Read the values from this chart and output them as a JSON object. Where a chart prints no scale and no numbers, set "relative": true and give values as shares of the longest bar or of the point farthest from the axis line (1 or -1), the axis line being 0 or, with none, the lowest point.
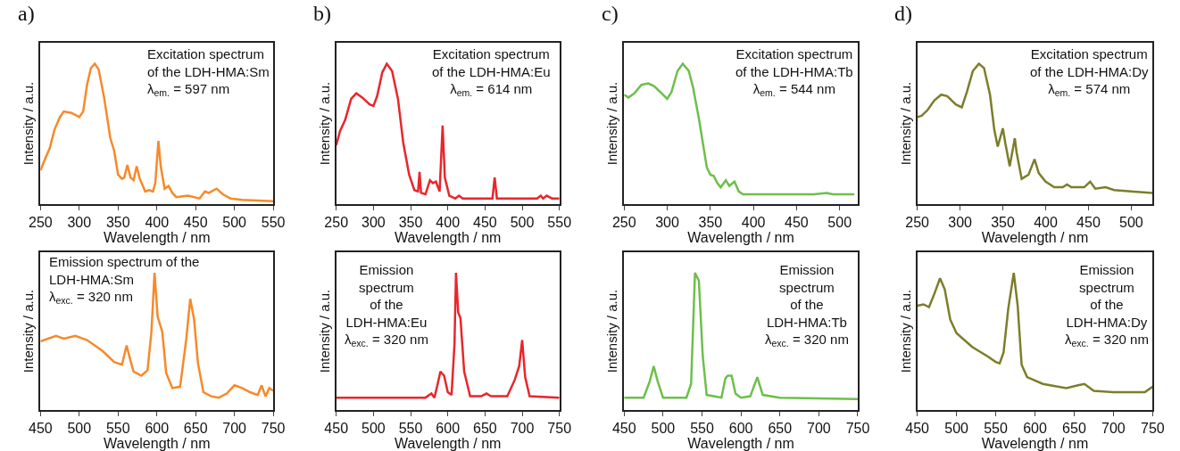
{
  "chart_data": [
    {
      "type": "line",
      "relative": true,
      "title": "a)",
      "xlabel": "Wavelength / nm",
      "ylabel": "Intensity / a.u.",
      "xlim": [
        250,
        550
      ],
      "xticks": [
        250,
        300,
        350,
        400,
        450,
        500,
        550
      ],
      "tick_labels": "x",
      "annotations": [
        "Excitation spectrum\nof the LDH-HMA:Sm\nλ$_{em.}$ = 597 nm"
      ],
      "series": [
        {
          "color": "#f7892a",
          "x": [
            250,
            255,
            262,
            268,
            275,
            280,
            290,
            300,
            305,
            310,
            315,
            320,
            325,
            332,
            340,
            345,
            350,
            355,
            358,
            362,
            366,
            370,
            374,
            378,
            385,
            390,
            395,
            398,
            402,
            405,
            410,
            415,
            420,
            425,
            440,
            455,
            462,
            467,
            477,
            485,
            495,
            510,
            550
          ],
          "values": [
            0.24,
            0.31,
            0.4,
            0.53,
            0.62,
            0.66,
            0.65,
            0.62,
            0.66,
            0.85,
            0.97,
            1.0,
            0.96,
            0.76,
            0.47,
            0.38,
            0.21,
            0.18,
            0.19,
            0.28,
            0.19,
            0.17,
            0.27,
            0.18,
            0.09,
            0.1,
            0.09,
            0.15,
            0.45,
            0.27,
            0.11,
            0.13,
            0.08,
            0.05,
            0.06,
            0.04,
            0.09,
            0.08,
            0.11,
            0.07,
            0.04,
            0.03,
            0.02
          ]
        }
      ]
    },
    {
      "type": "line",
      "relative": true,
      "title": "b)",
      "xlabel": "Wavelength / nm",
      "ylabel": "Intensity / a.u.",
      "xlim": [
        250,
        550
      ],
      "xticks": [
        250,
        300,
        350,
        400,
        450,
        500,
        550
      ],
      "tick_labels": "x",
      "annotations": [
        "Excitation spectrum\nof the LDH-HMA:Eu\nλ$_{em.}$ = 614 nm"
      ],
      "series": [
        {
          "color": "#e8262b",
          "x": [
            250,
            255,
            262,
            270,
            277,
            285,
            295,
            300,
            305,
            312,
            318,
            325,
            333,
            340,
            348,
            355,
            360,
            362,
            364,
            370,
            376,
            380,
            384,
            389,
            393,
            396,
            402,
            410,
            415,
            420,
            460,
            463,
            466,
            520,
            525,
            528,
            533,
            540,
            550
          ],
          "values": [
            0.42,
            0.52,
            0.6,
            0.75,
            0.79,
            0.76,
            0.71,
            0.7,
            0.77,
            0.94,
            1.0,
            0.95,
            0.75,
            0.44,
            0.21,
            0.1,
            0.09,
            0.23,
            0.08,
            0.07,
            0.17,
            0.15,
            0.16,
            0.09,
            0.56,
            0.19,
            0.06,
            0.04,
            0.06,
            0.04,
            0.04,
            0.19,
            0.04,
            0.04,
            0.06,
            0.04,
            0.06,
            0.04,
            0.04
          ]
        }
      ]
    },
    {
      "type": "line",
      "relative": true,
      "title": "c)",
      "xlabel": "Wavelength / nm",
      "ylabel": "Intensity / a.u.",
      "xlim": [
        250,
        521
      ],
      "xticks": [
        250,
        300,
        350,
        400,
        450,
        500
      ],
      "tick_labels": "x",
      "annotations": [
        "Excitation spectrum\nof the LDH-HMA:Tb\nλ$_{em.}$ = 544 nm"
      ],
      "series": [
        {
          "color": "#6dbf4b",
          "x": [
            250,
            255,
            262,
            270,
            278,
            285,
            295,
            300,
            305,
            312,
            318,
            325,
            330,
            337,
            342,
            346,
            350,
            354,
            358,
            362,
            368,
            372,
            378,
            383,
            388,
            420,
            470,
            485,
            492,
            517
          ],
          "values": [
            0.78,
            0.76,
            0.79,
            0.85,
            0.86,
            0.84,
            0.78,
            0.75,
            0.8,
            0.95,
            1.0,
            0.95,
            0.83,
            0.6,
            0.41,
            0.26,
            0.21,
            0.2,
            0.15,
            0.12,
            0.17,
            0.13,
            0.16,
            0.09,
            0.07,
            0.07,
            0.07,
            0.08,
            0.07,
            0.07
          ]
        }
      ]
    },
    {
      "type": "line",
      "relative": true,
      "title": "d)",
      "xlabel": "Wavelength / nm",
      "ylabel": "Intensity / a.u.",
      "xlim": [
        250,
        525
      ],
      "xticks": [
        250,
        300,
        350,
        400,
        450,
        500
      ],
      "tick_labels": "x",
      "annotations": [
        "Excitation spectrum\nof the LDH-HMA:Dy\nλ$_{em.}$ = 574 nm"
      ],
      "series": [
        {
          "color": "#7d7d2a",
          "x": [
            250,
            255,
            262,
            270,
            278,
            285,
            295,
            302,
            308,
            315,
            322,
            328,
            335,
            340,
            344,
            350,
            353,
            358,
            364,
            366,
            372,
            380,
            387,
            392,
            400,
            410,
            420,
            425,
            430,
            445,
            452,
            458,
            470,
            480,
            500,
            525
          ],
          "values": [
            0.62,
            0.63,
            0.67,
            0.74,
            0.78,
            0.77,
            0.71,
            0.69,
            0.8,
            0.95,
            1.0,
            0.97,
            0.78,
            0.53,
            0.41,
            0.54,
            0.43,
            0.27,
            0.47,
            0.37,
            0.18,
            0.21,
            0.32,
            0.22,
            0.16,
            0.12,
            0.12,
            0.14,
            0.12,
            0.12,
            0.16,
            0.11,
            0.12,
            0.1,
            0.09,
            0.08
          ]
        }
      ]
    },
    {
      "type": "line",
      "relative": true,
      "xlabel": "Wavelength / nm",
      "ylabel": "Intensity / a.u.",
      "xlim": [
        450,
        750
      ],
      "xticks": [
        450,
        500,
        550,
        600,
        650,
        700,
        750
      ],
      "tick_labels": "x",
      "annotations": [
        "Emission spectrum of the\nLDH-HMA:Sm\nλ$_{exc.}$ = 320 nm"
      ],
      "series": [
        {
          "color": "#f7892a",
          "x": [
            450,
            470,
            480,
            495,
            510,
            530,
            545,
            555,
            561,
            566,
            570,
            580,
            588,
            593,
            597,
            601,
            607,
            612,
            620,
            630,
            638,
            643,
            648,
            653,
            660,
            670,
            680,
            690,
            700,
            710,
            720,
            730,
            735,
            740,
            745,
            750
          ],
          "values": [
            0.5,
            0.54,
            0.52,
            0.54,
            0.51,
            0.43,
            0.35,
            0.33,
            0.47,
            0.36,
            0.28,
            0.25,
            0.29,
            0.57,
            1.0,
            0.68,
            0.57,
            0.27,
            0.16,
            0.17,
            0.52,
            0.81,
            0.66,
            0.34,
            0.13,
            0.1,
            0.09,
            0.12,
            0.18,
            0.16,
            0.13,
            0.11,
            0.18,
            0.1,
            0.16,
            0.14
          ]
        }
      ]
    },
    {
      "type": "line",
      "relative": true,
      "xlabel": "Wavelength / nm",
      "ylabel": "Intensity / a.u.",
      "xlim": [
        450,
        750
      ],
      "xticks": [
        450,
        500,
        550,
        600,
        650,
        700,
        750
      ],
      "tick_labels": "x",
      "annotations": [
        "Emission\nspectrum\nof the\nLDH-HMA:Eu\nλ$_{exc.}$ = 320 nm"
      ],
      "series": [
        {
          "color": "#e8262b",
          "x": [
            450,
            570,
            578,
            582,
            586,
            590,
            595,
            600,
            605,
            609,
            611,
            614,
            617,
            622,
            630,
            645,
            652,
            658,
            680,
            690,
            696,
            700,
            704,
            710,
            750
          ],
          "values": [
            0.09,
            0.09,
            0.12,
            0.09,
            0.18,
            0.28,
            0.25,
            0.13,
            0.11,
            0.48,
            1.0,
            0.71,
            0.67,
            0.28,
            0.1,
            0.1,
            0.12,
            0.1,
            0.1,
            0.22,
            0.32,
            0.51,
            0.24,
            0.1,
            0.09
          ]
        }
      ]
    },
    {
      "type": "line",
      "relative": true,
      "xlabel": "Wavelength / nm",
      "ylabel": "Intensity / a.u.",
      "xlim": [
        450,
        750
      ],
      "xticks": [
        450,
        500,
        550,
        600,
        650,
        700,
        750
      ],
      "tick_labels": "x",
      "annotations": [
        "Emission\nspectrum\nof the\nLDH-HMA:Tb\nλ$_{exc.}$ = 320 nm"
      ],
      "series": [
        {
          "color": "#6dbf4b",
          "x": [
            450,
            475,
            483,
            488,
            493,
            500,
            530,
            536,
            541,
            546,
            551,
            556,
            575,
            580,
            583,
            588,
            593,
            600,
            612,
            621,
            628,
            650,
            750
          ],
          "values": [
            0.09,
            0.09,
            0.21,
            0.32,
            0.21,
            0.09,
            0.09,
            0.19,
            1.0,
            0.94,
            0.39,
            0.11,
            0.09,
            0.23,
            0.25,
            0.25,
            0.12,
            0.09,
            0.1,
            0.24,
            0.11,
            0.09,
            0.08
          ]
        }
      ]
    },
    {
      "type": "line",
      "relative": true,
      "xlabel": "Wavelength / nm",
      "ylabel": "Intensity / a.u.",
      "xlim": [
        450,
        750
      ],
      "xticks": [
        450,
        500,
        550,
        600,
        650,
        700,
        750
      ],
      "tick_labels": "x",
      "annotations": [
        "Emission\nspectrum\nof the\nLDH-HMA:Dy\nλ$_{exc.}$ = 320 nm"
      ],
      "series": [
        {
          "color": "#7d7d2a",
          "x": [
            450,
            458,
            465,
            472,
            479,
            485,
            492,
            500,
            520,
            540,
            550,
            555,
            560,
            566,
            573,
            578,
            583,
            590,
            610,
            640,
            655,
            663,
            675,
            700,
            740,
            750
          ],
          "values": [
            0.76,
            0.77,
            0.75,
            0.85,
            0.96,
            0.88,
            0.66,
            0.56,
            0.46,
            0.39,
            0.35,
            0.34,
            0.42,
            0.74,
            1.0,
            0.76,
            0.33,
            0.24,
            0.19,
            0.16,
            0.18,
            0.19,
            0.14,
            0.13,
            0.13,
            0.17
          ]
        }
      ]
    }
  ]
}
